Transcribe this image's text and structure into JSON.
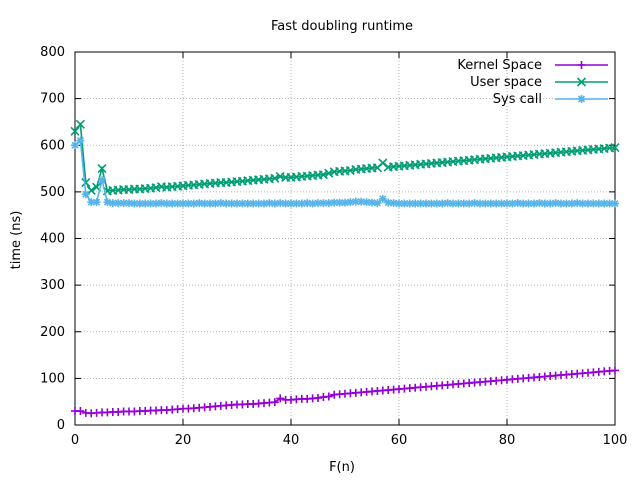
{
  "chart_data": {
    "type": "line",
    "title": "Fast doubling runtime",
    "xlabel": "F(n)",
    "ylabel": "time (ns)",
    "xlim": [
      0,
      100
    ],
    "ylim": [
      0,
      800
    ],
    "x_ticks": [
      0,
      20,
      40,
      60,
      80,
      100
    ],
    "y_ticks": [
      0,
      100,
      200,
      300,
      400,
      500,
      600,
      700,
      800
    ],
    "grid": true,
    "legend_position": "top-right",
    "x": [
      0,
      1,
      2,
      3,
      4,
      5,
      6,
      7,
      8,
      9,
      10,
      11,
      12,
      13,
      14,
      15,
      16,
      17,
      18,
      19,
      20,
      21,
      22,
      23,
      24,
      25,
      26,
      27,
      28,
      29,
      30,
      31,
      32,
      33,
      34,
      35,
      36,
      37,
      38,
      39,
      40,
      41,
      42,
      43,
      44,
      45,
      46,
      47,
      48,
      49,
      50,
      51,
      52,
      53,
      54,
      55,
      56,
      57,
      58,
      59,
      60,
      61,
      62,
      63,
      64,
      65,
      66,
      67,
      68,
      69,
      70,
      71,
      72,
      73,
      74,
      75,
      76,
      77,
      78,
      79,
      80,
      81,
      82,
      83,
      84,
      85,
      86,
      87,
      88,
      89,
      90,
      91,
      92,
      93,
      94,
      95,
      96,
      97,
      98,
      99,
      100
    ],
    "series": [
      {
        "name": "Kernel Space",
        "color": "#9400d3",
        "marker": "plus",
        "values": [
          30,
          30,
          26,
          25,
          26,
          27,
          27,
          28,
          28,
          29,
          29,
          29,
          30,
          30,
          31,
          31,
          32,
          32,
          33,
          34,
          35,
          35,
          36,
          37,
          38,
          39,
          40,
          41,
          42,
          43,
          44,
          44,
          45,
          45,
          46,
          47,
          48,
          49,
          57,
          54,
          54,
          55,
          56,
          56,
          57,
          58,
          60,
          61,
          65,
          66,
          67,
          68,
          69,
          70,
          71,
          72,
          73,
          74,
          75,
          76,
          77,
          78,
          79,
          80,
          81,
          82,
          83,
          84,
          85,
          86,
          87,
          88,
          89,
          90,
          91,
          92,
          93,
          94,
          95,
          96,
          97,
          98,
          99,
          100,
          101,
          102,
          103,
          104,
          105,
          106,
          107,
          108,
          109,
          110,
          111,
          112,
          113,
          114,
          115,
          116,
          117
        ]
      },
      {
        "name": "User space",
        "color": "#009e73",
        "marker": "x",
        "values": [
          630,
          645,
          520,
          503,
          510,
          550,
          502,
          503,
          504,
          505,
          505,
          506,
          506,
          507,
          508,
          509,
          511,
          510,
          511,
          512,
          513,
          514,
          515,
          516,
          517,
          518,
          519,
          520,
          520,
          521,
          522,
          523,
          524,
          525,
          526,
          527,
          528,
          529,
          533,
          531,
          531,
          532,
          533,
          534,
          535,
          536,
          537,
          540,
          543,
          544,
          545,
          546,
          548,
          549,
          550,
          551,
          552,
          562,
          553,
          554,
          555,
          556,
          557,
          558,
          559,
          560,
          561,
          562,
          563,
          564,
          565,
          566,
          567,
          568,
          569,
          570,
          571,
          572,
          573,
          574,
          575,
          576,
          577,
          578,
          579,
          580,
          581,
          582,
          583,
          584,
          585,
          586,
          587,
          588,
          589,
          590,
          591,
          592,
          593,
          594,
          595
        ]
      },
      {
        "name": "Sys call",
        "color": "#56b4e9",
        "marker": "star",
        "values": [
          600,
          610,
          495,
          478,
          478,
          525,
          478,
          476,
          476,
          476,
          476,
          475,
          475,
          475,
          475,
          475,
          476,
          475,
          475,
          475,
          475,
          475,
          475,
          476,
          475,
          475,
          475,
          476,
          475,
          475,
          475,
          475,
          475,
          475,
          475,
          475,
          476,
          475,
          476,
          475,
          475,
          475,
          475,
          476,
          475,
          476,
          476,
          476,
          477,
          477,
          477,
          478,
          479,
          479,
          478,
          477,
          476,
          485,
          477,
          476,
          475,
          475,
          475,
          475,
          475,
          475,
          475,
          475,
          475,
          476,
          475,
          475,
          475,
          475,
          476,
          475,
          475,
          475,
          475,
          475,
          475,
          475,
          476,
          475,
          475,
          475,
          476,
          475,
          475,
          476,
          475,
          475,
          475,
          476,
          475,
          475,
          475,
          475,
          475,
          475,
          475
        ]
      }
    ]
  }
}
